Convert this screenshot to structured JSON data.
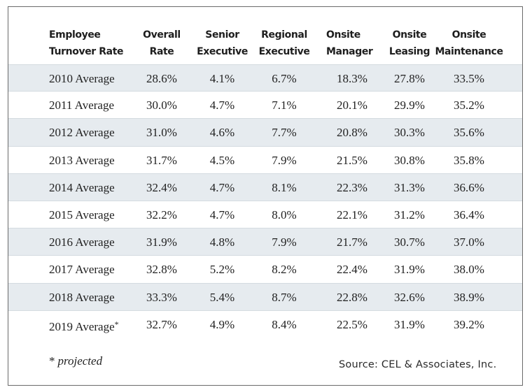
{
  "table": {
    "headers": [
      {
        "line1": "Employee",
        "line2": "Turnover Rate"
      },
      {
        "line1": "Overall",
        "line2": "Rate"
      },
      {
        "line1": "Senior",
        "line2": "Executive"
      },
      {
        "line1": "Regional",
        "line2": "Executive"
      },
      {
        "line1": "Onsite",
        "line2": "Manager"
      },
      {
        "line1": "Onsite",
        "line2": "Leasing"
      },
      {
        "line1": "Onsite",
        "line2": "Maintenance"
      }
    ],
    "rows": [
      [
        "2010 Average",
        "28.6%",
        "4.1%",
        "6.7%",
        "18.3%",
        "27.8%",
        "33.5%"
      ],
      [
        "2011 Average",
        "30.0%",
        "4.7%",
        "7.1%",
        "20.1%",
        "29.9%",
        "35.2%"
      ],
      [
        "2012 Average",
        "31.0%",
        "4.6%",
        "7.7%",
        "20.8%",
        "30.3%",
        "35.6%"
      ],
      [
        "2013 Average",
        "31.7%",
        "4.5%",
        "7.9%",
        "21.5%",
        "30.8%",
        "35.8%"
      ],
      [
        "2014 Average",
        "32.4%",
        "4.7%",
        "8.1%",
        "22.3%",
        "31.3%",
        "36.6%"
      ],
      [
        "2015 Average",
        "32.2%",
        "4.7%",
        "8.0%",
        "22.1%",
        "31.2%",
        "36.4%"
      ],
      [
        "2016 Average",
        "31.9%",
        "4.8%",
        "7.9%",
        "21.7%",
        "30.7%",
        "37.0%"
      ],
      [
        "2017 Average",
        "32.8%",
        "5.2%",
        "8.2%",
        "22.4%",
        "31.9%",
        "38.0%"
      ],
      [
        "2018 Average",
        "33.3%",
        "5.4%",
        "8.7%",
        "22.8%",
        "32.6%",
        "38.9%"
      ],
      [
        "2019 Average*",
        "32.7%",
        "4.9%",
        "8.4%",
        "22.5%",
        "31.9%",
        "39.2%"
      ]
    ],
    "row_shading": [
      true,
      false,
      true,
      false,
      true,
      false,
      true,
      false,
      true,
      false
    ]
  },
  "footnote": {
    "marker": "*",
    "text": "projected"
  },
  "source": "Source: CEL & Associates, Inc.",
  "colors": {
    "shaded_row": "#e6ebef",
    "border": "#6b6b6b"
  }
}
